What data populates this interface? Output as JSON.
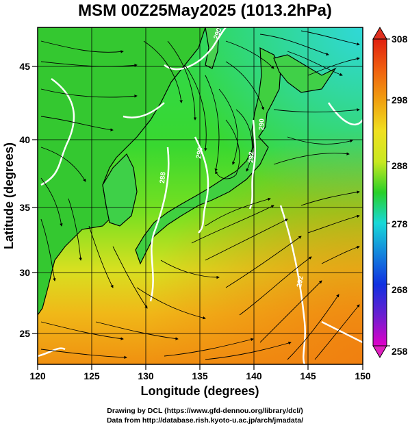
{
  "title": "MSM 00Z25May2025 (1013.2hPa)",
  "map": {
    "lon_range": [
      120,
      150
    ],
    "lat_range": [
      22.5,
      48
    ],
    "lon_ticks": [
      "120",
      "125",
      "130",
      "135",
      "140",
      "145",
      "150"
    ],
    "lat_ticks": [
      "25",
      "30",
      "35",
      "40",
      "45"
    ],
    "xlabel": "Longitude (degrees)",
    "ylabel": "Latitude (degrees)",
    "contour_labels": [
      "290",
      "288",
      "290",
      "292",
      "290",
      "292"
    ],
    "colorbar": {
      "ticks": [
        "258",
        "268",
        "278",
        "288",
        "298",
        "308"
      ],
      "colors": [
        "#e000c8",
        "#6a1fd0",
        "#1030e0",
        "#1a9ad8",
        "#18d8c8",
        "#20d880",
        "#28d028",
        "#90e020",
        "#e8e820",
        "#f0a010",
        "#f06010",
        "#e02010"
      ]
    },
    "colors": {
      "land_outline": "#000000",
      "contour": "#ffffff",
      "streamline": "#000000"
    }
  },
  "credits": {
    "line1": "Drawing by DCL (https://www.gfd-dennou.org/library/dcl/)",
    "line2": "Data from http://database.rish.kyoto-u.ac.jp/arch/jmadata/"
  }
}
